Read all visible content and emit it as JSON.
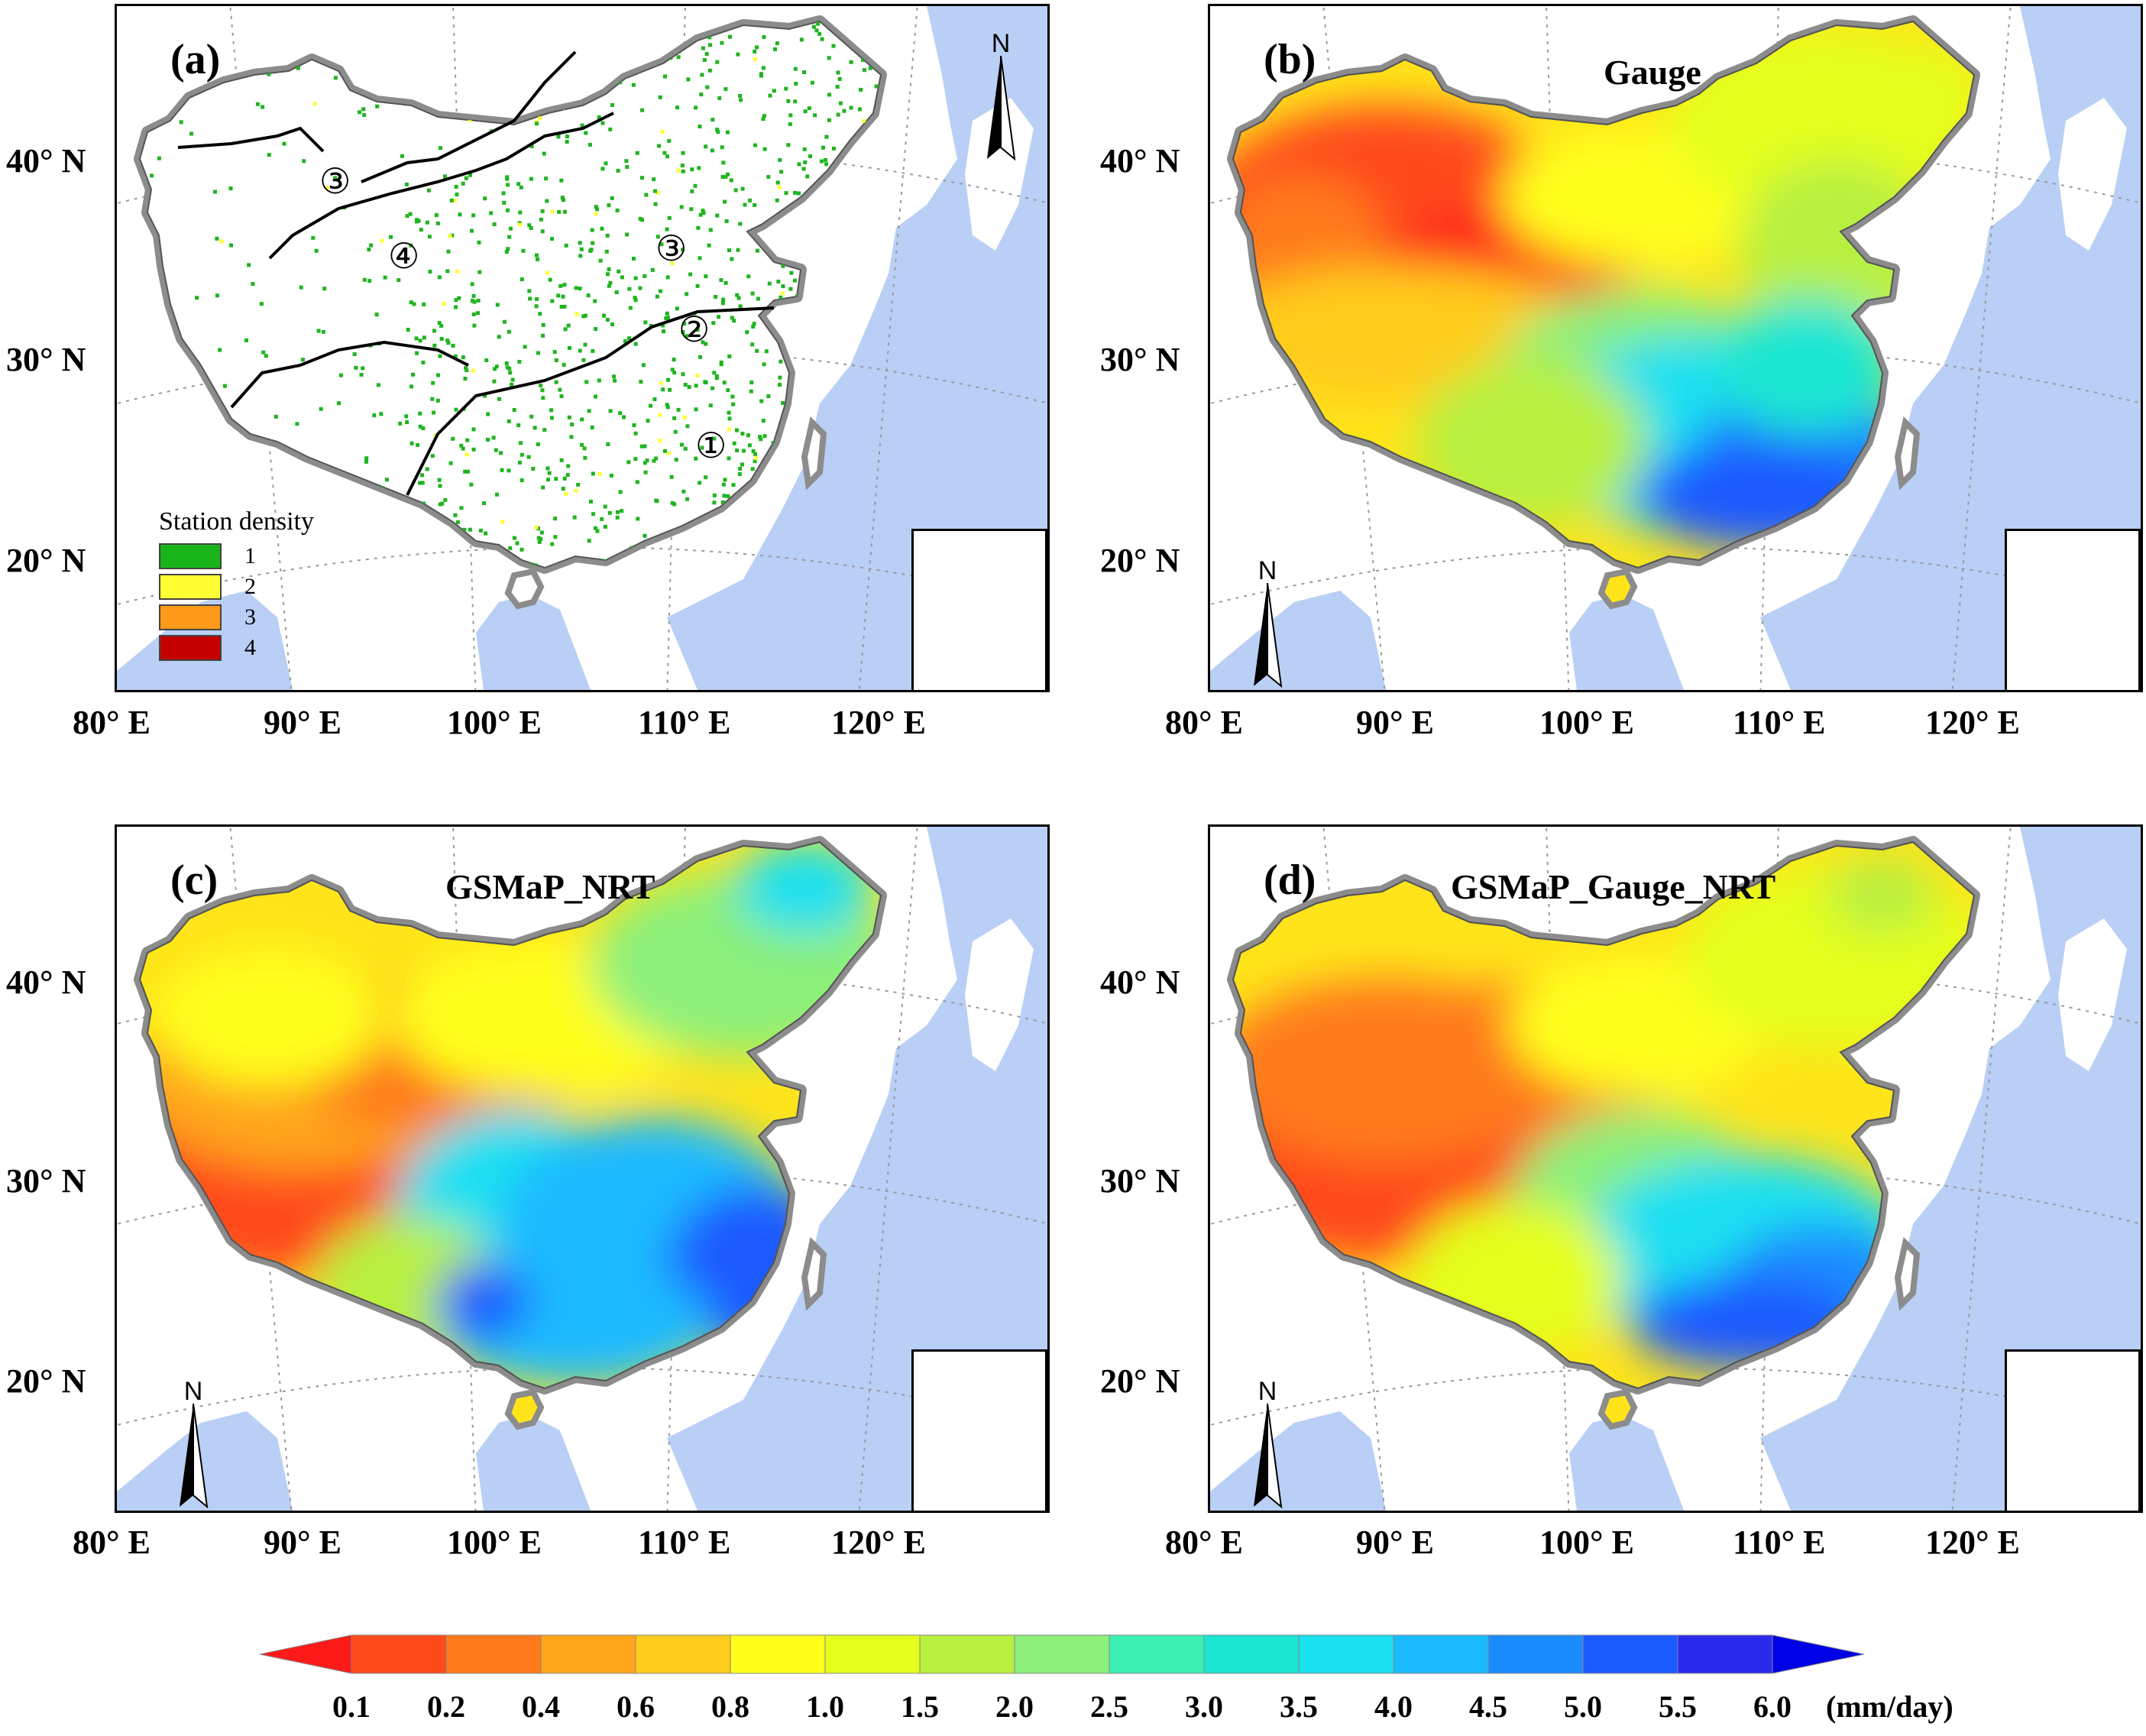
{
  "colors": {
    "ocean": "#b9cff5",
    "land": "#ffffff",
    "border": "#8c8c8c",
    "grid": "#9a9a9a",
    "station": "#1fb41f"
  },
  "axes": {
    "lat_labels": [
      "40° N",
      "30° N",
      "20° N"
    ],
    "lon_labels": [
      "80° E",
      "90° E",
      "100° E",
      "110° E",
      "120° E"
    ]
  },
  "north_letter": "N",
  "panels": {
    "a": {
      "label": "(a)",
      "title": "",
      "legend": {
        "title": "Station density",
        "items": [
          {
            "label": "1",
            "color": "#19b419"
          },
          {
            "label": "2",
            "color": "#ffff33"
          },
          {
            "label": "3",
            "color": "#ff9a1a"
          },
          {
            "label": "4",
            "color": "#c40000"
          }
        ]
      },
      "region_markers": [
        "①",
        "②",
        "③",
        "③",
        "④"
      ]
    },
    "b": {
      "label": "(b)",
      "title": "Gauge"
    },
    "c": {
      "label": "(c)",
      "title": "GSMaP_NRT"
    },
    "d": {
      "label": "(d)",
      "title": "GSMaP_Gauge_NRT"
    }
  },
  "colorbar": {
    "ticks": [
      "0.1",
      "0.2",
      "0.4",
      "0.6",
      "0.8",
      "1.0",
      "1.5",
      "2.0",
      "2.5",
      "3.0",
      "3.5",
      "4.0",
      "4.5",
      "5.0",
      "5.5",
      "6.0"
    ],
    "colors": [
      "#ff1a1a",
      "#ff4a1a",
      "#ff7a1a",
      "#ffa51a",
      "#ffcc1a",
      "#ffff1a",
      "#e4ff1a",
      "#b8f040",
      "#8cf07a",
      "#3cf0b4",
      "#1ae6d2",
      "#1ae0f0",
      "#1abaff",
      "#1a8cff",
      "#1a5aff",
      "#2a2aee",
      "#0000e6"
    ],
    "unit": "(mm/day)"
  }
}
